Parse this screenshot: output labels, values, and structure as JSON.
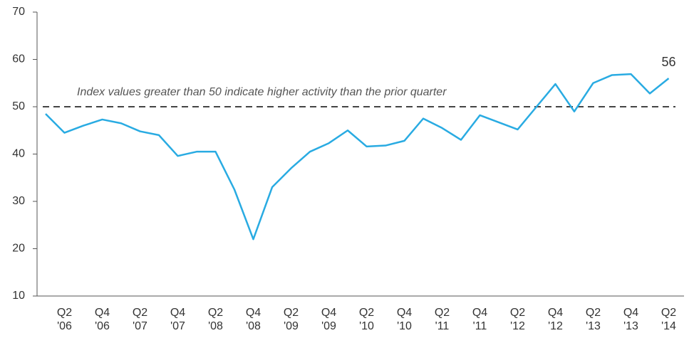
{
  "chart_data": {
    "type": "line",
    "categories": [
      null,
      [
        "Q2",
        "'06"
      ],
      null,
      [
        "Q4",
        "'06"
      ],
      null,
      [
        "Q2",
        "'07"
      ],
      null,
      [
        "Q4",
        "'07"
      ],
      null,
      [
        "Q2",
        "'08"
      ],
      null,
      [
        "Q4",
        "'08"
      ],
      null,
      [
        "Q2",
        "'09"
      ],
      null,
      [
        "Q4",
        "'09"
      ],
      null,
      [
        "Q2",
        "'10"
      ],
      null,
      [
        "Q4",
        "'10"
      ],
      null,
      [
        "Q2",
        "'11"
      ],
      null,
      [
        "Q4",
        "'11"
      ],
      null,
      [
        "Q2",
        "'12"
      ],
      null,
      [
        "Q4",
        "'12"
      ],
      null,
      [
        "Q2",
        "'13"
      ],
      null,
      [
        "Q4",
        "'13"
      ],
      null,
      [
        "Q2",
        "'14"
      ]
    ],
    "series": [
      {
        "color": "#29abe2",
        "values": [
          48.5,
          44.5,
          46,
          47.3,
          46.5,
          44.8,
          44,
          39.6,
          40.5,
          40.5,
          32.5,
          22,
          33,
          37,
          40.5,
          42.3,
          45,
          41.6,
          41.8,
          42.8,
          47.5,
          45.5,
          43,
          48.2,
          46.7,
          45.2,
          50,
          54.8,
          49,
          55,
          56.7,
          56.9,
          52.8,
          56
        ],
        "value_labels": [
          null,
          null,
          null,
          null,
          null,
          null,
          null,
          null,
          null,
          null,
          null,
          null,
          null,
          null,
          null,
          null,
          null,
          null,
          null,
          null,
          null,
          null,
          null,
          null,
          null,
          null,
          null,
          null,
          null,
          null,
          null,
          null,
          null,
          "56"
        ]
      }
    ],
    "reference_line": {
      "value": 50,
      "label": "Index values greater than 50 indicate higher activity than the prior quarter"
    },
    "ylim": [
      10,
      70
    ],
    "yticks": [
      10,
      20,
      30,
      40,
      50,
      60,
      70
    ]
  }
}
